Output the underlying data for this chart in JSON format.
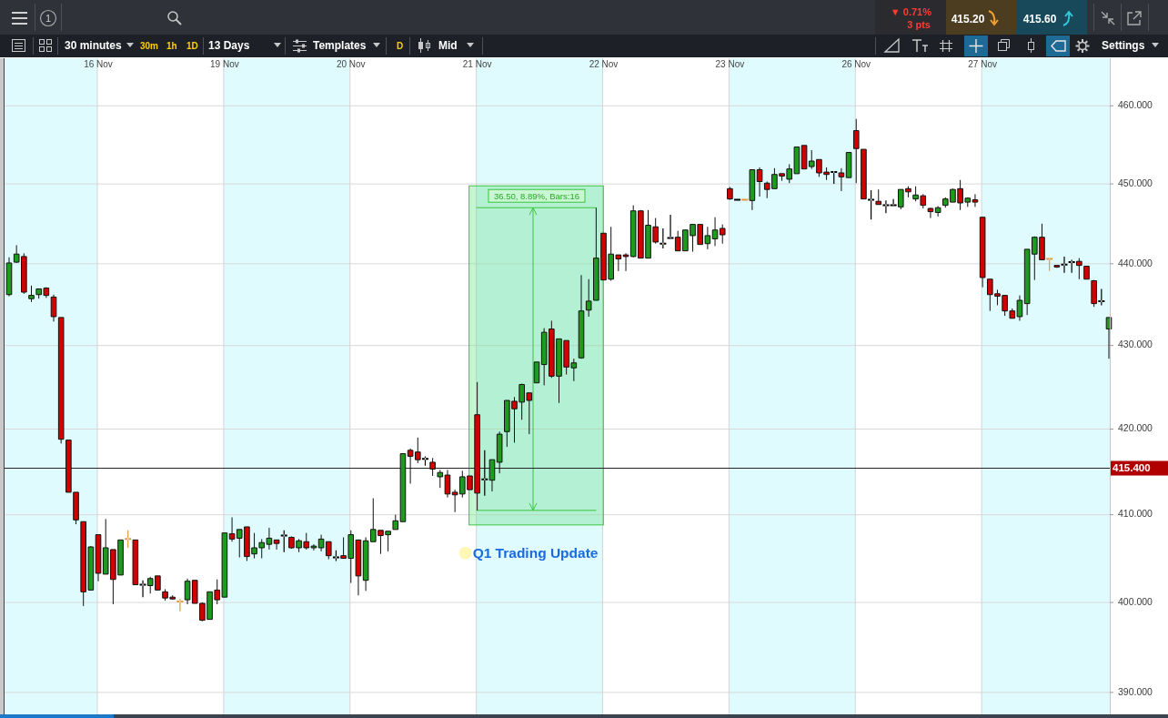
{
  "chart_data": {
    "type": "candlestick",
    "categories": [
      null,
      null,
      null,
      null,
      null,
      null,
      null,
      null,
      null,
      null,
      null,
      null,
      "16 Nov",
      null,
      null,
      null,
      null,
      null,
      null,
      null,
      null,
      null,
      null,
      null,
      null,
      null,
      null,
      null,
      null,
      "19 Nov",
      null,
      null,
      null,
      null,
      null,
      null,
      null,
      null,
      null,
      null,
      null,
      null,
      null,
      null,
      null,
      null,
      "20 Nov",
      null,
      null,
      null,
      null,
      null,
      null,
      null,
      null,
      null,
      null,
      null,
      null,
      null,
      null,
      null,
      null,
      "21 Nov",
      null,
      null,
      null,
      null,
      null,
      null,
      null,
      null,
      null,
      null,
      null,
      null,
      null,
      null,
      null,
      null,
      "22 Nov",
      null,
      null,
      null,
      null,
      null,
      null,
      null,
      null,
      null,
      null,
      null,
      null,
      null,
      null,
      null,
      null,
      "23 Nov",
      null,
      null,
      null,
      null,
      null,
      null,
      null,
      null,
      null,
      null,
      null,
      null,
      null,
      null,
      null,
      null,
      "26 Nov",
      null,
      null,
      null,
      null,
      null,
      null,
      null,
      null,
      null,
      null,
      null,
      null,
      null,
      null,
      null,
      null,
      "27 Nov",
      null,
      null,
      null,
      null,
      null,
      null,
      null,
      null,
      null,
      null,
      null,
      null,
      null,
      null,
      null,
      null,
      null
    ],
    "ohlc": [
      [
        436.2,
        440.8,
        436.0,
        440.1
      ],
      [
        440.2,
        442.3,
        440.1,
        441.2
      ],
      [
        440.9,
        441.3,
        436.3,
        436.5
      ],
      [
        435.7,
        437.3,
        435.3,
        436.1
      ],
      [
        436.2,
        436.9,
        435.7,
        436.9
      ],
      [
        437.0,
        437.1,
        435.8,
        436.1
      ],
      [
        435.9,
        436.2,
        432.9,
        433.5
      ],
      [
        433.4,
        433.4,
        418.3,
        418.8
      ],
      [
        418.7,
        418.7,
        412.6,
        412.6
      ],
      [
        412.6,
        412.6,
        408.9,
        409.4
      ],
      [
        409.2,
        409.2,
        399.6,
        401.2
      ],
      [
        401.4,
        406.4,
        401.4,
        406.3
      ],
      [
        407.7,
        407.7,
        402.4,
        403.3
      ],
      [
        403.2,
        409.5,
        403.2,
        406.2
      ],
      [
        406.0,
        406.0,
        399.8,
        402.6
      ],
      [
        403.1,
        407.1,
        403.1,
        407.1
      ],
      [
        407.2,
        408.2,
        406.2,
        407.2
      ],
      [
        407.1,
        407.1,
        402.0,
        402.0
      ],
      [
        402.0,
        402.5,
        400.6,
        402.0
      ],
      [
        401.9,
        402.9,
        401.0,
        402.7
      ],
      [
        403.0,
        403.0,
        401.4,
        401.4
      ],
      [
        401.2,
        401.5,
        400.2,
        400.5
      ],
      [
        400.6,
        400.8,
        400.3,
        400.4
      ],
      [
        400.1,
        400.4,
        399.0,
        400.1
      ],
      [
        400.3,
        402.7,
        399.8,
        402.4
      ],
      [
        402.5,
        402.5,
        399.9,
        399.9
      ],
      [
        399.9,
        400.0,
        397.9,
        398.0
      ],
      [
        398.1,
        401.2,
        398.1,
        401.2
      ],
      [
        401.4,
        402.6,
        399.8,
        400.3
      ],
      [
        400.6,
        407.9,
        400.6,
        407.9
      ],
      [
        407.8,
        409.7,
        406.9,
        407.2
      ],
      [
        407.3,
        408.3,
        405.1,
        408.3
      ],
      [
        408.6,
        408.6,
        404.7,
        405.2
      ],
      [
        405.5,
        407.9,
        405.0,
        406.2
      ],
      [
        406.2,
        407.2,
        405.0,
        406.8
      ],
      [
        406.6,
        408.5,
        406.0,
        407.3
      ],
      [
        407.1,
        407.1,
        406.0,
        406.7
      ],
      [
        407.6,
        408.2,
        405.7,
        407.6
      ],
      [
        407.4,
        407.5,
        406.1,
        406.2
      ],
      [
        406.2,
        407.2,
        405.7,
        407.0
      ],
      [
        406.9,
        407.9,
        406.0,
        406.2
      ],
      [
        406.2,
        406.6,
        405.9,
        406.4
      ],
      [
        406.2,
        407.7,
        405.8,
        407.2
      ],
      [
        406.9,
        406.9,
        404.9,
        405.3
      ],
      [
        405.1,
        405.9,
        404.7,
        405.1
      ],
      [
        405.3,
        407.4,
        405.0,
        405.0
      ],
      [
        405.0,
        408.2,
        402.2,
        407.7
      ],
      [
        407.1,
        407.1,
        400.8,
        403.0
      ],
      [
        402.5,
        407.4,
        401.3,
        407.0
      ],
      [
        406.9,
        411.9,
        406.9,
        408.3
      ],
      [
        408.2,
        408.2,
        405.5,
        407.6
      ],
      [
        407.7,
        408.1,
        405.8,
        408.1
      ],
      [
        408.3,
        410.0,
        408.3,
        409.3
      ],
      [
        409.2,
        417.1,
        409.2,
        417.1
      ],
      [
        417.5,
        417.7,
        413.6,
        416.8
      ],
      [
        417.3,
        419.0,
        416.0,
        416.4
      ],
      [
        416.5,
        416.8,
        415.7,
        416.5
      ],
      [
        416.1,
        416.6,
        414.5,
        415.3
      ],
      [
        414.4,
        415.2,
        413.1,
        414.9
      ],
      [
        414.6,
        415.2,
        412.0,
        412.4
      ],
      [
        412.6,
        412.9,
        410.3,
        412.3
      ],
      [
        412.4,
        415.1,
        412.0,
        414.4
      ],
      [
        414.5,
        414.5,
        412.9,
        412.9
      ],
      [
        421.7,
        425.6,
        410.5,
        412.5
      ],
      [
        414.1,
        417.5,
        412.2,
        414.1
      ],
      [
        414.0,
        416.4,
        412.7,
        416.4
      ],
      [
        416.1,
        419.7,
        414.8,
        419.4
      ],
      [
        419.7,
        423.4,
        417.9,
        423.4
      ],
      [
        423.3,
        423.8,
        418.4,
        422.4
      ],
      [
        423.2,
        425.4,
        421.1,
        425.3
      ],
      [
        424.3,
        424.3,
        419.4,
        423.4
      ],
      [
        425.5,
        428.0,
        425.5,
        428.0
      ],
      [
        427.7,
        432.1,
        425.2,
        431.6
      ],
      [
        432.0,
        433.0,
        426.1,
        426.3
      ],
      [
        426.3,
        430.8,
        423.1,
        430.8
      ],
      [
        430.6,
        430.6,
        426.5,
        427.4
      ],
      [
        427.3,
        428.4,
        425.7,
        427.9
      ],
      [
        428.5,
        438.6,
        428.4,
        434.2
      ],
      [
        434.3,
        438.1,
        433.5,
        435.4
      ],
      [
        435.5,
        447.0,
        435.5,
        440.7
      ],
      [
        443.8,
        443.8,
        438.0,
        438.0
      ],
      [
        438.1,
        444.6,
        437.9,
        441.2
      ],
      [
        441.1,
        441.1,
        439.1,
        440.6
      ],
      [
        441.1,
        441.3,
        439.1,
        440.9
      ],
      [
        440.9,
        447.3,
        440.8,
        446.6
      ],
      [
        446.6,
        446.7,
        440.7,
        440.7
      ],
      [
        440.7,
        446.7,
        440.7,
        444.8
      ],
      [
        444.6,
        445.7,
        442.5,
        442.7
      ],
      [
        442.5,
        444.4,
        441.9,
        442.5
      ],
      [
        443.2,
        446.1,
        443.2,
        443.2
      ],
      [
        443.3,
        444.1,
        441.6,
        441.6
      ],
      [
        441.6,
        444.2,
        441.6,
        444.2
      ],
      [
        443.5,
        444.9,
        441.5,
        444.9
      ],
      [
        444.9,
        444.9,
        442.4,
        442.4
      ],
      [
        442.5,
        444.6,
        441.8,
        443.5
      ],
      [
        443.1,
        445.8,
        442.2,
        444.2
      ],
      [
        444.4,
        444.9,
        442.5,
        443.6
      ],
      [
        449.4,
        449.6,
        448.0,
        448.1
      ],
      [
        448.0,
        448.0,
        448.0,
        448.0
      ],
      [
        448.0,
        448.0,
        448.0,
        448.0
      ],
      [
        447.9,
        451.8,
        446.7,
        451.8
      ],
      [
        451.8,
        452.1,
        448.4,
        450.3
      ],
      [
        450.1,
        450.3,
        448.2,
        449.3
      ],
      [
        449.4,
        452.0,
        449.4,
        451.2
      ],
      [
        451.3,
        451.3,
        450.4,
        451.0
      ],
      [
        450.6,
        452.5,
        450.1,
        451.9
      ],
      [
        451.3,
        454.7,
        451.3,
        454.7
      ],
      [
        454.9,
        454.9,
        451.9,
        451.9
      ],
      [
        452.2,
        454.3,
        451.9,
        452.9
      ],
      [
        453.1,
        453.1,
        450.9,
        451.4
      ],
      [
        451.5,
        452.1,
        450.5,
        451.2
      ],
      [
        451.5,
        451.6,
        450.0,
        451.5
      ],
      [
        451.4,
        452.0,
        449.1,
        450.9
      ],
      [
        450.8,
        454.0,
        450.8,
        454.0
      ],
      [
        456.8,
        458.3,
        450.1,
        454.5
      ],
      [
        454.4,
        454.4,
        448.1,
        448.1
      ],
      [
        448.0,
        449.2,
        445.5,
        448.0
      ],
      [
        447.8,
        449.3,
        447.4,
        447.4
      ],
      [
        447.3,
        447.9,
        446.3,
        447.3
      ],
      [
        447.3,
        448.1,
        447.3,
        447.3
      ],
      [
        447.1,
        449.3,
        446.8,
        449.3
      ],
      [
        449.4,
        449.7,
        448.3,
        449.0
      ],
      [
        448.1,
        449.7,
        447.8,
        448.6
      ],
      [
        448.5,
        448.7,
        446.9,
        447.3
      ],
      [
        446.9,
        447.0,
        445.7,
        446.5
      ],
      [
        446.4,
        447.2,
        445.9,
        447.0
      ],
      [
        447.3,
        448.3,
        447.0,
        448.1
      ],
      [
        447.7,
        449.4,
        447.7,
        449.3
      ],
      [
        449.4,
        450.5,
        446.7,
        447.6
      ],
      [
        447.7,
        448.3,
        447.1,
        448.2
      ],
      [
        448.0,
        448.7,
        447.1,
        447.7
      ],
      [
        445.8,
        445.8,
        437.1,
        438.3
      ],
      [
        438.1,
        438.1,
        434.2,
        436.2
      ],
      [
        436.3,
        436.8,
        434.9,
        436.0
      ],
      [
        436.1,
        436.1,
        433.6,
        434.2
      ],
      [
        434.2,
        434.5,
        433.3,
        433.3
      ],
      [
        433.5,
        436.1,
        433.0,
        435.5
      ],
      [
        435.1,
        441.8,
        433.7,
        441.8
      ],
      [
        441.2,
        443.4,
        438.0,
        443.3
      ],
      [
        443.3,
        445.0,
        440.5,
        440.5
      ],
      [
        440.6,
        440.6,
        439.1,
        440.6
      ],
      [
        439.8,
        439.8,
        439.5,
        439.6
      ],
      [
        439.9,
        440.9,
        438.9,
        439.9
      ],
      [
        440.2,
        440.5,
        438.9,
        440.2
      ],
      [
        440.3,
        440.7,
        438.1,
        439.8
      ],
      [
        439.7,
        439.7,
        438.1,
        438.1
      ],
      [
        437.9,
        438.0,
        434.7,
        435.1
      ],
      [
        435.4,
        436.9,
        434.9,
        435.4
      ],
      [
        432.0,
        433.4,
        428.4,
        433.4
      ]
    ],
    "colors": [
      "#1e9b1e",
      "#1e9b1e",
      "#d20000",
      "#1e9b1e",
      "#1e9b1e",
      "#d20000",
      "#d20000",
      "#d20000",
      "#d20000",
      "#d20000",
      "#d20000",
      "#1e9b1e",
      "#d20000",
      "#1e9b1e",
      "#d20000",
      "#1e9b1e",
      "#e39a3a",
      "#d20000",
      "#000000",
      "#1e9b1e",
      "#d20000",
      "#d20000",
      "#d20000",
      "#e39a3a",
      "#1e9b1e",
      "#d20000",
      "#d20000",
      "#1e9b1e",
      "#d20000",
      "#1e9b1e",
      "#d20000",
      "#1e9b1e",
      "#d20000",
      "#1e9b1e",
      "#1e9b1e",
      "#1e9b1e",
      "#d20000",
      "#000000",
      "#d20000",
      "#1e9b1e",
      "#d20000",
      "#1e9b1e",
      "#1e9b1e",
      "#d20000",
      "#000000",
      "#d20000",
      "#1e9b1e",
      "#d20000",
      "#1e9b1e",
      "#1e9b1e",
      "#d20000",
      "#1e9b1e",
      "#1e9b1e",
      "#1e9b1e",
      "#d20000",
      "#d20000",
      "#000000",
      "#d20000",
      "#1e9b1e",
      "#d20000",
      "#d20000",
      "#1e9b1e",
      "#d20000",
      "#d20000",
      "#000000",
      "#1e9b1e",
      "#1e9b1e",
      "#1e9b1e",
      "#d20000",
      "#1e9b1e",
      "#d20000",
      "#1e9b1e",
      "#1e9b1e",
      "#d20000",
      "#1e9b1e",
      "#d20000",
      "#1e9b1e",
      "#1e9b1e",
      "#1e9b1e",
      "#1e9b1e",
      "#d20000",
      "#1e9b1e",
      "#d20000",
      "#d20000",
      "#1e9b1e",
      "#d20000",
      "#1e9b1e",
      "#d20000",
      "#000000",
      "#000000",
      "#d20000",
      "#1e9b1e",
      "#1e9b1e",
      "#d20000",
      "#1e9b1e",
      "#1e9b1e",
      "#d20000",
      "#d20000",
      "#000000",
      "#e39a3a",
      "#1e9b1e",
      "#d20000",
      "#d20000",
      "#1e9b1e",
      "#d20000",
      "#1e9b1e",
      "#1e9b1e",
      "#d20000",
      "#1e9b1e",
      "#d20000",
      "#d20000",
      "#000000",
      "#d20000",
      "#1e9b1e",
      "#d20000",
      "#d20000",
      "#000000",
      "#d20000",
      "#000000",
      "#000000",
      "#1e9b1e",
      "#d20000",
      "#1e9b1e",
      "#d20000",
      "#d20000",
      "#1e9b1e",
      "#1e9b1e",
      "#1e9b1e",
      "#d20000",
      "#1e9b1e",
      "#d20000",
      "#d20000",
      "#d20000",
      "#d20000",
      "#d20000",
      "#d20000",
      "#1e9b1e",
      "#1e9b1e",
      "#1e9b1e",
      "#d20000",
      "#e39a3a",
      "#d20000",
      "#000000",
      "#000000",
      "#d20000",
      "#d20000",
      "#d20000",
      "#000000",
      "#1e9b1e"
    ],
    "ylim": [
      387.6,
      466.2
    ],
    "log": true,
    "yticks": [
      {
        "value": 390,
        "label": "390.000"
      },
      {
        "value": 400,
        "label": "400.000"
      },
      {
        "value": 410,
        "label": "410.000"
      },
      {
        "value": 420,
        "label": "420.000"
      },
      {
        "value": 430,
        "label": "430.000"
      },
      {
        "value": 440,
        "label": "440.000"
      },
      {
        "value": 450,
        "label": "450.000"
      },
      {
        "value": 460,
        "label": "460.000"
      }
    ],
    "grid": true,
    "bands": [
      {
        "axis": "x",
        "from": "16 Nov",
        "to": "19 Nov",
        "color": "#ffffff"
      },
      {
        "axis": "x",
        "from": "20 Nov",
        "to": "21 Nov",
        "color": "#ffffff"
      },
      {
        "axis": "x",
        "from": "22 Nov",
        "to": "23 Nov",
        "color": "#ffffff"
      },
      {
        "axis": "x",
        "from": "26 Nov",
        "to": "27 Nov",
        "color": "#ffffff"
      }
    ],
    "ref_lines": [
      {
        "axis": "y",
        "value": 415.4,
        "label": "415.400",
        "color": "#222222"
      }
    ],
    "annotations": [
      {
        "text": "36.50, 8.89%, Bars:16",
        "x": "21 Nov",
        "y": 447.0
      },
      {
        "text": "Q1 Trading Update",
        "x": "21 Nov",
        "y": 405.6
      },
      "1",
      "▼ 0.71%",
      "3 pts",
      "415.20",
      "415.60",
      "30 minutes",
      "30m",
      "1h",
      "1D",
      "13 Days",
      "Templates",
      "D",
      "Mid",
      "Settings"
    ]
  }
}
